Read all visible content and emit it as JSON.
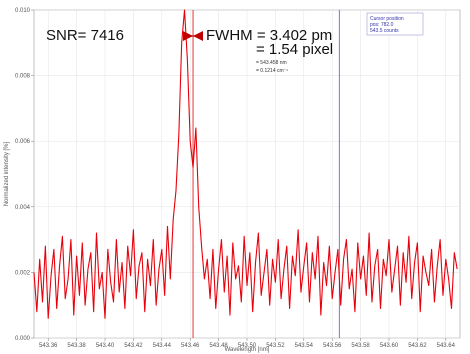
{
  "chart_data": {
    "type": "line",
    "title": "",
    "xlabel": "Wavelength [nm]",
    "ylabel": "Normalized intensity [%]",
    "x_ticks": [
      "543.36",
      "543.38",
      "543.40",
      "543.42",
      "543.44",
      "543.46",
      "543.48",
      "543.50",
      "543.52",
      "543.54",
      "543.56",
      "543.58",
      "543.60",
      "543.62",
      "543.64"
    ],
    "y_ticks": [
      "0.000",
      "0.002",
      "0.004",
      "0.006",
      "0.008",
      "0.010"
    ],
    "xlim": [
      543.35,
      543.65
    ],
    "ylim": [
      0,
      0.01
    ],
    "grid": true,
    "series": [
      {
        "name": "",
        "color": "#e8000b",
        "x": [
          543.35,
          543.352,
          543.354,
          543.356,
          543.358,
          543.36,
          543.362,
          543.364,
          543.366,
          543.368,
          543.37,
          543.372,
          543.374,
          543.376,
          543.378,
          543.38,
          543.382,
          543.384,
          543.386,
          543.388,
          543.39,
          543.392,
          543.394,
          543.396,
          543.398,
          543.4,
          543.402,
          543.404,
          543.406,
          543.408,
          543.41,
          543.412,
          543.414,
          543.416,
          543.418,
          543.42,
          543.422,
          543.424,
          543.426,
          543.428,
          543.43,
          543.432,
          543.434,
          543.436,
          543.438,
          543.44,
          543.442,
          543.444,
          543.446,
          543.448,
          543.45,
          543.452,
          543.454,
          543.456,
          543.458,
          543.46,
          543.462,
          543.464,
          543.466,
          543.468,
          543.47,
          543.472,
          543.474,
          543.476,
          543.478,
          543.48,
          543.482,
          543.484,
          543.486,
          543.488,
          543.49,
          543.492,
          543.494,
          543.496,
          543.498,
          543.5,
          543.502,
          543.504,
          543.506,
          543.508,
          543.51,
          543.512,
          543.514,
          543.516,
          543.518,
          543.52,
          543.522,
          543.524,
          543.526,
          543.528,
          543.53,
          543.532,
          543.534,
          543.536,
          543.538,
          543.54,
          543.542,
          543.544,
          543.546,
          543.548,
          543.55,
          543.552,
          543.554,
          543.556,
          543.558,
          543.56,
          543.562,
          543.564,
          543.566,
          543.568,
          543.57,
          543.572,
          543.574,
          543.576,
          543.578,
          543.58,
          543.582,
          543.584,
          543.586,
          543.588,
          543.59,
          543.592,
          543.594,
          543.596,
          543.598,
          543.6,
          543.602,
          543.604,
          543.606,
          543.608,
          543.61,
          543.612,
          543.614,
          543.616,
          543.618,
          543.62,
          543.622,
          543.624,
          543.626,
          543.628,
          543.63,
          543.632,
          543.634,
          543.636,
          543.638,
          543.64,
          543.642,
          543.644,
          543.646,
          543.648
        ],
        "y": [
          0.002,
          0.0008,
          0.0024,
          0.0011,
          0.0028,
          0.0006,
          0.0019,
          0.0027,
          0.0009,
          0.0022,
          0.0031,
          0.0012,
          0.0018,
          0.003,
          0.0007,
          0.0025,
          0.0013,
          0.0029,
          0.001,
          0.0021,
          0.0026,
          0.0008,
          0.0032,
          0.0015,
          0.002,
          0.0006,
          0.0027,
          0.0017,
          0.0011,
          0.003,
          0.0014,
          0.0023,
          0.0009,
          0.0028,
          0.0019,
          0.0033,
          0.0012,
          0.0022,
          0.0026,
          0.0008,
          0.0024,
          0.0016,
          0.003,
          0.001,
          0.0021,
          0.0027,
          0.0013,
          0.0034,
          0.0018,
          0.0036,
          0.0045,
          0.0062,
          0.009,
          0.01,
          0.0085,
          0.006,
          0.0052,
          0.0064,
          0.004,
          0.0028,
          0.0018,
          0.0024,
          0.0012,
          0.0027,
          0.0009,
          0.0021,
          0.003,
          0.0014,
          0.0025,
          0.0007,
          0.0029,
          0.0018,
          0.0022,
          0.0011,
          0.0031,
          0.0016,
          0.0026,
          0.0008,
          0.0023,
          0.0032,
          0.0013,
          0.002,
          0.0027,
          0.001,
          0.0024,
          0.0017,
          0.003,
          0.0012,
          0.0021,
          0.0028,
          0.0009,
          0.0025,
          0.0019,
          0.0033,
          0.0014,
          0.0022,
          0.0029,
          0.0011,
          0.0026,
          0.0018,
          0.0031,
          0.0007,
          0.0023,
          0.0016,
          0.0028,
          0.0012,
          0.002,
          0.0027,
          0.001,
          0.0024,
          0.003,
          0.0015,
          0.0021,
          0.0008,
          0.0029,
          0.0018,
          0.0025,
          0.0013,
          0.0032,
          0.0011,
          0.0022,
          0.0027,
          0.0009,
          0.0024,
          0.0019,
          0.003,
          0.0014,
          0.0021,
          0.0028,
          0.001,
          0.0026,
          0.0017,
          0.0031,
          0.0012,
          0.0023,
          0.0029,
          0.0008,
          0.0025,
          0.002,
          0.0016,
          0.0027,
          0.0011,
          0.0022,
          0.003,
          0.0013,
          0.0024,
          0.0018,
          0.0009,
          0.0026,
          0.0021
        ]
      }
    ],
    "markers": [
      {
        "name": "peak-marker",
        "x": 543.462,
        "color": "#e8000b"
      },
      {
        "name": "cursor",
        "x": 543.565,
        "color": "#5555cc"
      }
    ],
    "annotations": {
      "snr": "SNR= 7416",
      "fwhm_pm": "FWHM = 3.402 pm",
      "fwhm_pixel": "= 1.54 pixel",
      "fwhm_nm": "= 543.458 nm",
      "fwhm_wavenumber": "= 0.1214 cm⁻¹",
      "cursor_title": "Cursor position",
      "cursor_pos": "pos: 782.0",
      "cursor_counts": "543.5 counts"
    }
  }
}
